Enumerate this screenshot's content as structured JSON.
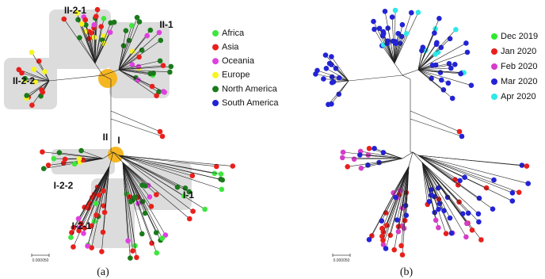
{
  "panels": [
    {
      "label": "(a)",
      "scale_label": "0.000050",
      "clades": [
        {
          "label": "II-2-1"
        },
        {
          "label": "II-1"
        },
        {
          "label": "II-2-2"
        },
        {
          "label": "II"
        },
        {
          "label": "I"
        },
        {
          "label": "I-2-2"
        },
        {
          "label": "I-1"
        },
        {
          "label": "I-2-1"
        }
      ],
      "legend": [
        {
          "name": "Africa",
          "color": "#3ee63e"
        },
        {
          "name": "Asia",
          "color": "#e8201c"
        },
        {
          "name": "Oceania",
          "color": "#e040e0"
        },
        {
          "name": "Europe",
          "color": "#f5f51f"
        },
        {
          "name": "North America",
          "color": "#1a7a1a"
        },
        {
          "name": "South America",
          "color": "#2323d6"
        }
      ]
    },
    {
      "label": "(b)",
      "scale_label": "0.000050",
      "legend": [
        {
          "name": "Dec 2019",
          "color": "#2ee82e"
        },
        {
          "name": "Jan 2020",
          "color": "#e8201c"
        },
        {
          "name": "Feb 2020",
          "color": "#d63cc8"
        },
        {
          "name": "Mar 2020",
          "color": "#2323d6"
        },
        {
          "name": "Apr 2020",
          "color": "#2ee8e8"
        }
      ]
    }
  ]
}
